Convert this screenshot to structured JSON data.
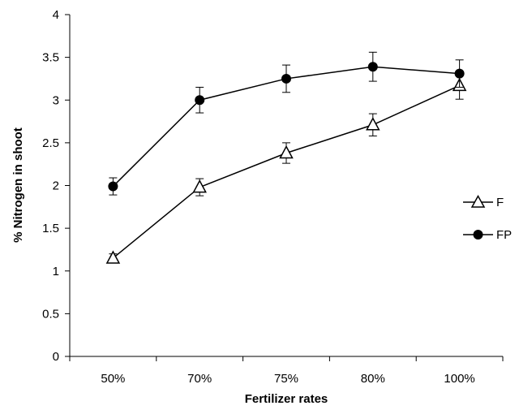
{
  "chart_data": {
    "type": "line",
    "xlabel": "Fertilizer rates",
    "ylabel": "% Nitrogen in shoot",
    "categories": [
      "50%",
      "70%",
      "75%",
      "80%",
      "100%"
    ],
    "ylim": [
      0,
      4
    ],
    "yticks": [
      0,
      0.5,
      1,
      1.5,
      2,
      2.5,
      3,
      3.5,
      4
    ],
    "ytick_labels": [
      "0",
      "0.5",
      "1",
      "1.5",
      "2",
      "2.5",
      "3",
      "3.5",
      "4"
    ],
    "grid": false,
    "legend_position": "right",
    "series": [
      {
        "name": "F",
        "marker": "open-triangle",
        "color": "#000000",
        "values": [
          1.15,
          1.98,
          2.38,
          2.71,
          3.17
        ],
        "errors": [
          0.05,
          0.1,
          0.12,
          0.13,
          0.16
        ]
      },
      {
        "name": "FP",
        "marker": "filled-circle",
        "color": "#000000",
        "values": [
          1.99,
          3.0,
          3.25,
          3.39,
          3.31
        ],
        "errors": [
          0.1,
          0.15,
          0.16,
          0.17,
          0.16
        ]
      }
    ]
  }
}
